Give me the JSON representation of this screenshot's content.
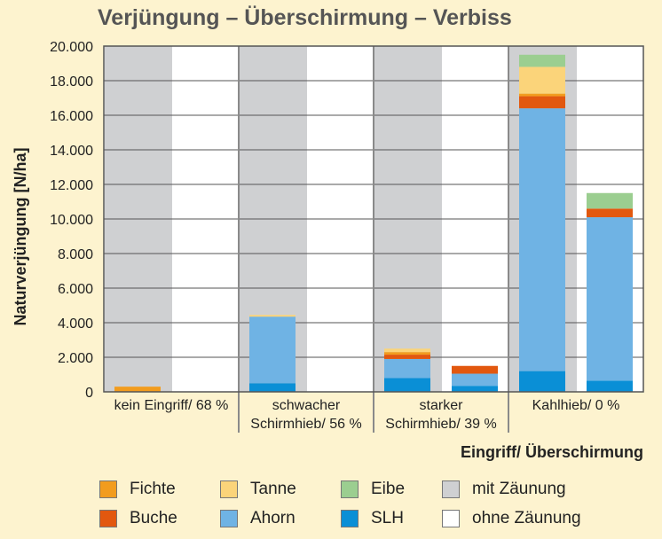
{
  "chart_data": {
    "type": "bar",
    "title": "Verjüngung – Überschirmung – Verbiss",
    "xlabel": "Eingriff/ Überschirmung",
    "ylabel": "Naturverjüngung [N/ha]",
    "ylim": [
      0,
      20000
    ],
    "yticks": [
      0,
      2000,
      4000,
      6000,
      8000,
      10000,
      12000,
      14000,
      16000,
      18000,
      20000
    ],
    "ytick_labels": [
      "0",
      "2.000",
      "4.000",
      "6.000",
      "8.000",
      "10.000",
      "12.000",
      "14.000",
      "16.000",
      "18.000",
      "20.000"
    ],
    "categories": [
      [
        "kein Eingriff/ 68 %"
      ],
      [
        "schwacher",
        "Schirmhieb/ 56 %"
      ],
      [
        "starker",
        "Schirmhieb/ 39 %"
      ],
      [
        "Kahlhieb/ 0 %"
      ]
    ],
    "groups": [
      "mit Zäunung",
      "ohne Zäunung"
    ],
    "series": [
      {
        "name": "SLH",
        "color": "#0a8fd6",
        "values": [
          [
            0,
            0
          ],
          [
            500,
            0
          ],
          [
            800,
            350
          ],
          [
            1200,
            650
          ]
        ]
      },
      {
        "name": "Ahorn",
        "color": "#6fb3e4",
        "values": [
          [
            0,
            0
          ],
          [
            3850,
            0
          ],
          [
            1100,
            700
          ],
          [
            15200,
            9450
          ]
        ]
      },
      {
        "name": "Buche",
        "color": "#e2580f",
        "values": [
          [
            0,
            0
          ],
          [
            0,
            0
          ],
          [
            250,
            450
          ],
          [
            700,
            500
          ]
        ]
      },
      {
        "name": "Fichte",
        "color": "#f29c1e",
        "values": [
          [
            300,
            0
          ],
          [
            0,
            0
          ],
          [
            150,
            0
          ],
          [
            150,
            0
          ]
        ]
      },
      {
        "name": "Tanne",
        "color": "#fbd47a",
        "values": [
          [
            0,
            0
          ],
          [
            100,
            0
          ],
          [
            200,
            0
          ],
          [
            1550,
            0
          ]
        ]
      },
      {
        "name": "Eibe",
        "color": "#9bce90",
        "values": [
          [
            0,
            0
          ],
          [
            0,
            0
          ],
          [
            0,
            0
          ],
          [
            700,
            900
          ]
        ]
      }
    ],
    "legend": {
      "position": "bottom",
      "items": [
        {
          "label": "Fichte",
          "color": "#f29c1e"
        },
        {
          "label": "Tanne",
          "color": "#fbd47a"
        },
        {
          "label": "Eibe",
          "color": "#9bce90"
        },
        {
          "label": "mit Zäunung",
          "color": "#cfd0d2"
        },
        {
          "label": "Buche",
          "color": "#e2580f"
        },
        {
          "label": "Ahorn",
          "color": "#6fb3e4"
        },
        {
          "label": "SLH",
          "color": "#0a8fd6"
        },
        {
          "label": "ohne Zäunung",
          "color": "#ffffff"
        }
      ]
    },
    "colors": {
      "background": "#fdf3cf",
      "fence_shade": "#cfd0d2",
      "plot_bg": "#ffffff",
      "title": "#555555"
    }
  }
}
